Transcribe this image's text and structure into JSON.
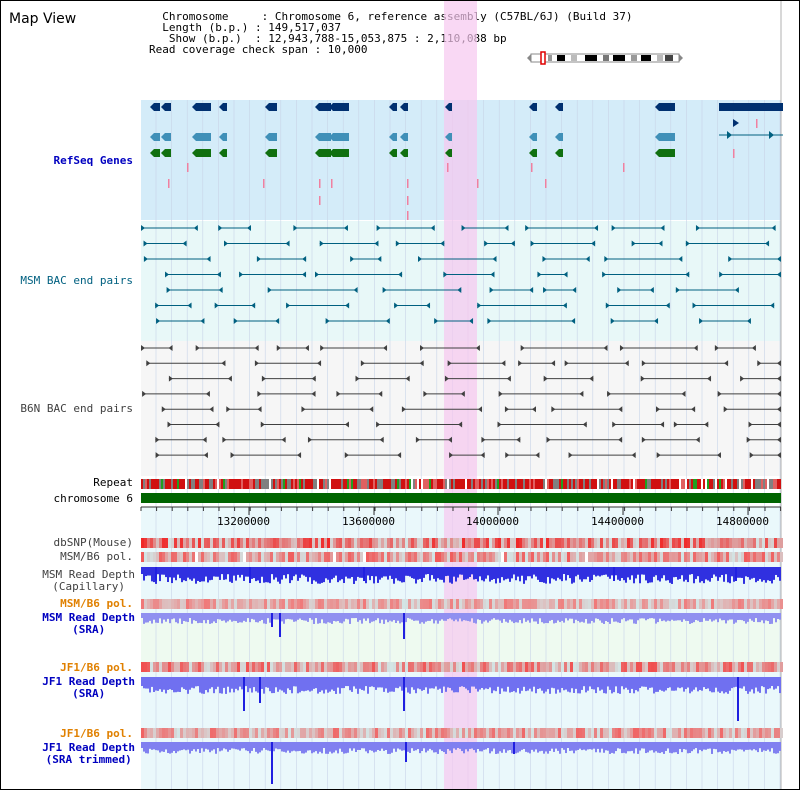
{
  "view": {
    "title": "Map View",
    "info_lines": [
      "  Chromosome     : Chromosome 6, reference assembly (C57BL/6J) (Build 37)",
      "  Length (b.p.) : 149,517,037",
      "   Show (b.p.)  : 12,943,788-15,053,875 : 2,110,088 bp",
      "Read coverage check span : 10,000"
    ]
  },
  "tracks": {
    "refseq": {
      "label": "RefSeq Genes",
      "color": "#0000c0"
    },
    "msm_bac": {
      "label": "MSM BAC end pairs",
      "color": "#006080"
    },
    "b6n_bac": {
      "label": "B6N BAC end pairs",
      "color": "#404040"
    },
    "repeat": {
      "label": "Repeat"
    },
    "chromosome": {
      "label": "chromosome 6"
    },
    "dbsnp": {
      "label": "dbSNP(Mouse)"
    },
    "msm_b6_pol_1": {
      "label": "MSM/B6 pol."
    },
    "msm_depth_cap": {
      "label1": "MSM Read Depth",
      "label2": "(Capillary)"
    },
    "msm_b6_pol_2": {
      "label": "MSM/B6 pol.",
      "color": "#e08000"
    },
    "msm_depth_sra": {
      "label1": "MSM Read Depth",
      "label2": "(SRA)"
    },
    "jf1_b6_pol_1": {
      "label": "JF1/B6 pol.",
      "color": "#e08000"
    },
    "jf1_depth_sra": {
      "label1": "JF1 Read Depth",
      "label2": "(SRA)"
    },
    "jf1_b6_pol_2": {
      "label": "JF1/B6 pol.",
      "color": "#e08000"
    },
    "jf1_depth_trim": {
      "label1": "JF1 Read Depth",
      "label2": "(SRA trimmed)"
    }
  },
  "axis": {
    "ticks": [
      "13200000",
      "13600000",
      "14000000",
      "14400000",
      "14800000"
    ]
  }
}
